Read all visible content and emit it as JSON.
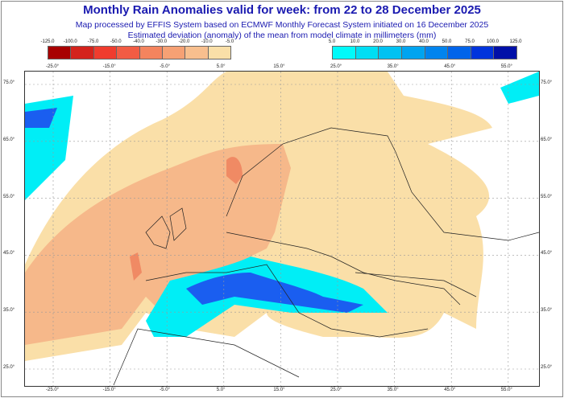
{
  "title": "Monthly Rain Anomalies valid for week: from 22 to 28 December 2025",
  "subtitle1": "Map processed by EFFIS System based on ECMWF Monthly Forecast System initiated on 16 December 2025",
  "subtitle2": "Estimated deviation (anomaly) of the mean from model climate in millimeters (mm)",
  "legend_dry": {
    "labels": [
      "-125.0",
      "-100.0",
      "-75.0",
      "-50.0",
      "-40.0",
      "-30.0",
      "-20.0",
      "-10.0",
      "-5.0"
    ],
    "colors": [
      "#a80000",
      "#d4231c",
      "#f03c2e",
      "#f25c44",
      "#f4845e",
      "#f6a174",
      "#f8bf8e",
      "#fadfa8"
    ]
  },
  "legend_wet": {
    "labels": [
      "5.0",
      "10.0",
      "20.0",
      "30.0",
      "40.0",
      "50.0",
      "75.0",
      "100.0",
      "125.0"
    ],
    "colors": [
      "#00fafa",
      "#00def4",
      "#00c2f2",
      "#00a4f0",
      "#0084ee",
      "#0064ea",
      "#0034dc",
      "#0010a8"
    ]
  },
  "lon_labels": [
    "-25.0°",
    "-15.0°",
    "-5.0°",
    "5.0°",
    "15.0°",
    "25.0°",
    "35.0°",
    "45.0°",
    "55.0°"
  ],
  "lat_labels": [
    "75.0°",
    "65.0°",
    "55.0°",
    "45.0°",
    "35.0°",
    "25.0°"
  ]
}
